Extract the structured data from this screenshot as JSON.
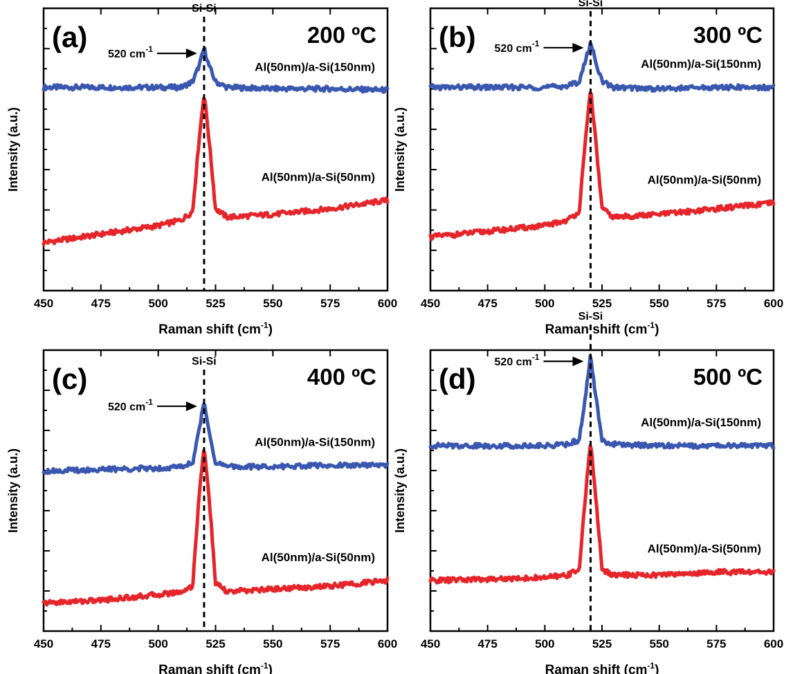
{
  "colors": {
    "blue": "#3a57b0",
    "red": "#e5252a"
  },
  "chart_data": [
    {
      "type": "line",
      "panel": "(a)",
      "temperature": "200 ºC",
      "xlabel": "Raman shift (cm",
      "xlabel_sup": "-1",
      "xlabel_end": ")",
      "ylabel": "Intensity (a.u.)",
      "xlim": [
        450,
        600
      ],
      "x_ticks": [
        "450",
        "475",
        "500",
        "525",
        "550",
        "575",
        "600"
      ],
      "y_ticks": "none",
      "reference_line": {
        "x": 520,
        "label": "Si-Si"
      },
      "annotation": {
        "text": "520 cm",
        "sup": "-1",
        "points_to": 520
      },
      "series": [
        {
          "name": "Al(50nm)/a-Si(150nm)",
          "color": "blue",
          "x": [
            450,
            475,
            500,
            510,
            515,
            518,
            520,
            522,
            525,
            530,
            550,
            575,
            600
          ],
          "y": [
            0.72,
            0.72,
            0.72,
            0.72,
            0.74,
            0.8,
            0.86,
            0.8,
            0.74,
            0.72,
            0.715,
            0.715,
            0.71
          ]
        },
        {
          "name": "Al(50nm)/a-Si(50nm)",
          "color": "red",
          "x": [
            450,
            475,
            500,
            510,
            515,
            518,
            520,
            522,
            525,
            530,
            550,
            575,
            600
          ],
          "y": [
            0.17,
            0.2,
            0.23,
            0.25,
            0.28,
            0.55,
            0.7,
            0.55,
            0.29,
            0.26,
            0.27,
            0.29,
            0.32
          ]
        }
      ]
    },
    {
      "type": "line",
      "panel": "(b)",
      "temperature": "300 ºC",
      "xlabel": "Raman shift (cm",
      "xlabel_sup": "-1",
      "xlabel_end": ")",
      "ylabel": "Intensity (a.u.)",
      "xlim": [
        450,
        600
      ],
      "x_ticks": [
        "450",
        "475",
        "500",
        "525",
        "550",
        "575",
        "600"
      ],
      "y_ticks": "none",
      "reference_line": {
        "x": 520,
        "label": "Si-Si"
      },
      "annotation": {
        "text": "520 cm",
        "sup": "-1",
        "points_to": 520
      },
      "series": [
        {
          "name": "Al(50nm)/a-Si(150nm)",
          "color": "blue",
          "x": [
            450,
            475,
            500,
            510,
            515,
            518,
            520,
            522,
            525,
            530,
            550,
            575,
            600
          ],
          "y": [
            0.72,
            0.72,
            0.72,
            0.725,
            0.74,
            0.82,
            0.88,
            0.82,
            0.74,
            0.72,
            0.715,
            0.72,
            0.72
          ]
        },
        {
          "name": "Al(50nm)/a-Si(50nm)",
          "color": "red",
          "x": [
            450,
            475,
            500,
            510,
            515,
            518,
            520,
            522,
            525,
            530,
            550,
            575,
            600
          ],
          "y": [
            0.19,
            0.21,
            0.23,
            0.25,
            0.28,
            0.55,
            0.72,
            0.55,
            0.29,
            0.26,
            0.27,
            0.29,
            0.31
          ]
        }
      ]
    },
    {
      "type": "line",
      "panel": "(c)",
      "temperature": "400 ºC",
      "xlabel": "Raman shift (cm",
      "xlabel_sup": "-1",
      "xlabel_end": ")",
      "ylabel": "Intensity (a.u.)",
      "xlim": [
        450,
        600
      ],
      "x_ticks": [
        "450",
        "475",
        "500",
        "525",
        "550",
        "575",
        "600"
      ],
      "y_ticks": "none",
      "reference_line": {
        "x": 520,
        "label": "Si-Si"
      },
      "annotation": {
        "text": "520 cm",
        "sup": "-1",
        "points_to": 520
      },
      "series": [
        {
          "name": "Al(50nm)/a-Si(150nm)",
          "color": "blue",
          "x": [
            450,
            475,
            500,
            510,
            515,
            518,
            520,
            522,
            525,
            530,
            550,
            575,
            600
          ],
          "y": [
            0.57,
            0.575,
            0.58,
            0.585,
            0.6,
            0.72,
            0.82,
            0.72,
            0.6,
            0.585,
            0.585,
            0.59,
            0.59
          ]
        },
        {
          "name": "Al(50nm)/a-Si(50nm)",
          "color": "red",
          "x": [
            450,
            475,
            500,
            510,
            515,
            518,
            520,
            522,
            525,
            530,
            550,
            575,
            600
          ],
          "y": [
            0.1,
            0.11,
            0.13,
            0.14,
            0.16,
            0.5,
            0.65,
            0.5,
            0.17,
            0.14,
            0.15,
            0.16,
            0.18
          ]
        }
      ]
    },
    {
      "type": "line",
      "panel": "(d)",
      "temperature": "500 ºC",
      "xlabel": "Raman shift (cm",
      "xlabel_sup": "-1",
      "xlabel_end": ")",
      "ylabel": "Intensity (a.u.)",
      "xlim": [
        450,
        600
      ],
      "x_ticks": [
        "450",
        "475",
        "500",
        "525",
        "550",
        "575",
        "600"
      ],
      "y_ticks": "none",
      "reference_line": {
        "x": 520,
        "label": "Si-Si"
      },
      "annotation": {
        "text": "520 cm",
        "sup": "-1",
        "points_to": 520
      },
      "series": [
        {
          "name": "Al(50nm)/a-Si(150nm)",
          "color": "blue",
          "x": [
            450,
            475,
            500,
            510,
            515,
            518,
            520,
            522,
            525,
            530,
            550,
            575,
            600
          ],
          "y": [
            0.66,
            0.66,
            0.66,
            0.665,
            0.68,
            0.85,
            0.98,
            0.85,
            0.68,
            0.665,
            0.66,
            0.66,
            0.66
          ]
        },
        {
          "name": "Al(50nm)/a-Si(50nm)",
          "color": "red",
          "x": [
            450,
            475,
            500,
            510,
            515,
            518,
            520,
            522,
            525,
            530,
            550,
            575,
            600
          ],
          "y": [
            0.18,
            0.185,
            0.19,
            0.2,
            0.22,
            0.5,
            0.68,
            0.5,
            0.22,
            0.2,
            0.2,
            0.21,
            0.21
          ]
        }
      ]
    }
  ]
}
